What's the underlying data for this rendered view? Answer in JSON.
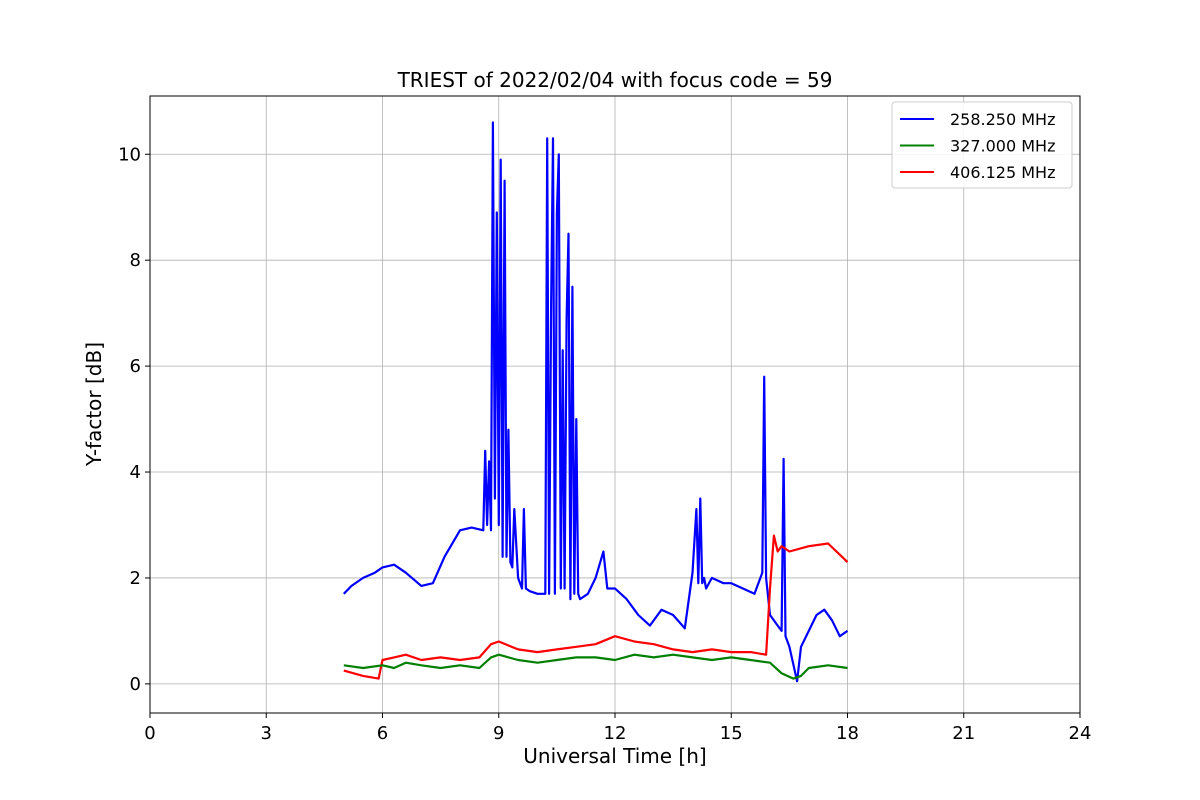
{
  "chart_data": {
    "type": "line",
    "title": "TRIEST of 2022/02/04 with focus code = 59",
    "xlabel": "Universal Time [h]",
    "ylabel": "Y-factor [dB]",
    "xlim": [
      0,
      24
    ],
    "ylim": [
      -0.55,
      11.1
    ],
    "xticks": [
      0,
      3,
      6,
      9,
      12,
      15,
      18,
      21,
      24
    ],
    "yticks": [
      0,
      2,
      4,
      6,
      8,
      10
    ],
    "grid": true,
    "legend_position": "top-right",
    "series": [
      {
        "name": "258.250 MHz",
        "color": "#0000ff",
        "x": [
          5.0,
          5.2,
          5.5,
          5.8,
          6.0,
          6.3,
          6.6,
          7.0,
          7.3,
          7.6,
          8.0,
          8.3,
          8.6,
          8.65,
          8.7,
          8.75,
          8.8,
          8.85,
          8.9,
          8.95,
          9.0,
          9.05,
          9.1,
          9.15,
          9.2,
          9.25,
          9.3,
          9.35,
          9.4,
          9.5,
          9.6,
          9.65,
          9.7,
          9.8,
          10.0,
          10.2,
          10.25,
          10.3,
          10.35,
          10.4,
          10.45,
          10.5,
          10.55,
          10.6,
          10.65,
          10.7,
          10.75,
          10.8,
          10.85,
          10.9,
          10.95,
          11.0,
          11.05,
          11.1,
          11.3,
          11.5,
          11.7,
          11.8,
          12.0,
          12.3,
          12.6,
          12.9,
          13.2,
          13.5,
          13.8,
          14.0,
          14.1,
          14.15,
          14.2,
          14.25,
          14.3,
          14.35,
          14.5,
          14.8,
          15.0,
          15.3,
          15.6,
          15.8,
          15.85,
          15.9,
          16.0,
          16.2,
          16.3,
          16.35,
          16.4,
          16.5,
          16.7,
          16.8,
          17.0,
          17.2,
          17.4,
          17.6,
          17.8,
          18.0
        ],
        "y": [
          1.7,
          1.85,
          2.0,
          2.1,
          2.2,
          2.25,
          2.1,
          1.85,
          1.9,
          2.4,
          2.9,
          2.95,
          2.9,
          4.4,
          3.0,
          4.2,
          2.9,
          10.6,
          3.5,
          8.9,
          3.0,
          9.9,
          2.4,
          9.5,
          2.4,
          4.8,
          2.3,
          2.2,
          3.3,
          2.0,
          1.8,
          3.3,
          1.8,
          1.75,
          1.7,
          1.7,
          10.3,
          1.7,
          7.1,
          10.3,
          1.7,
          8.9,
          10.0,
          1.8,
          6.3,
          1.8,
          6.9,
          8.5,
          1.6,
          7.5,
          1.7,
          5.0,
          1.7,
          1.6,
          1.7,
          2.0,
          2.5,
          1.8,
          1.8,
          1.6,
          1.3,
          1.1,
          1.4,
          1.3,
          1.05,
          2.1,
          3.3,
          1.9,
          3.5,
          1.9,
          2.0,
          1.8,
          2.0,
          1.9,
          1.9,
          1.8,
          1.7,
          2.1,
          5.8,
          2.0,
          1.3,
          1.1,
          1.0,
          4.25,
          0.9,
          0.7,
          0.05,
          0.7,
          1.0,
          1.3,
          1.4,
          1.2,
          0.9,
          1.0
        ]
      },
      {
        "name": "327.000 MHz",
        "color": "#008000",
        "x": [
          5.0,
          5.5,
          6.0,
          6.3,
          6.6,
          7.0,
          7.5,
          8.0,
          8.5,
          8.8,
          9.0,
          9.5,
          10.0,
          10.5,
          11.0,
          11.5,
          12.0,
          12.5,
          13.0,
          13.5,
          14.0,
          14.5,
          15.0,
          15.5,
          16.0,
          16.3,
          16.6,
          16.8,
          17.0,
          17.5,
          18.0
        ],
        "y": [
          0.35,
          0.3,
          0.35,
          0.3,
          0.4,
          0.35,
          0.3,
          0.35,
          0.3,
          0.5,
          0.55,
          0.45,
          0.4,
          0.45,
          0.5,
          0.5,
          0.45,
          0.55,
          0.5,
          0.55,
          0.5,
          0.45,
          0.5,
          0.45,
          0.4,
          0.2,
          0.1,
          0.15,
          0.3,
          0.35,
          0.3
        ]
      },
      {
        "name": "406.125 MHz",
        "color": "#ff0000",
        "x": [
          5.0,
          5.5,
          5.9,
          6.0,
          6.3,
          6.6,
          7.0,
          7.5,
          8.0,
          8.5,
          8.8,
          9.0,
          9.5,
          10.0,
          10.5,
          11.0,
          11.5,
          12.0,
          12.5,
          13.0,
          13.5,
          14.0,
          14.5,
          15.0,
          15.5,
          15.9,
          16.0,
          16.1,
          16.2,
          16.3,
          16.5,
          17.0,
          17.5,
          18.0
        ],
        "y": [
          0.25,
          0.15,
          0.1,
          0.45,
          0.5,
          0.55,
          0.45,
          0.5,
          0.45,
          0.5,
          0.75,
          0.8,
          0.65,
          0.6,
          0.65,
          0.7,
          0.75,
          0.9,
          0.8,
          0.75,
          0.65,
          0.6,
          0.65,
          0.6,
          0.6,
          0.55,
          1.8,
          2.8,
          2.5,
          2.6,
          2.5,
          2.6,
          2.65,
          2.3
        ]
      }
    ]
  }
}
